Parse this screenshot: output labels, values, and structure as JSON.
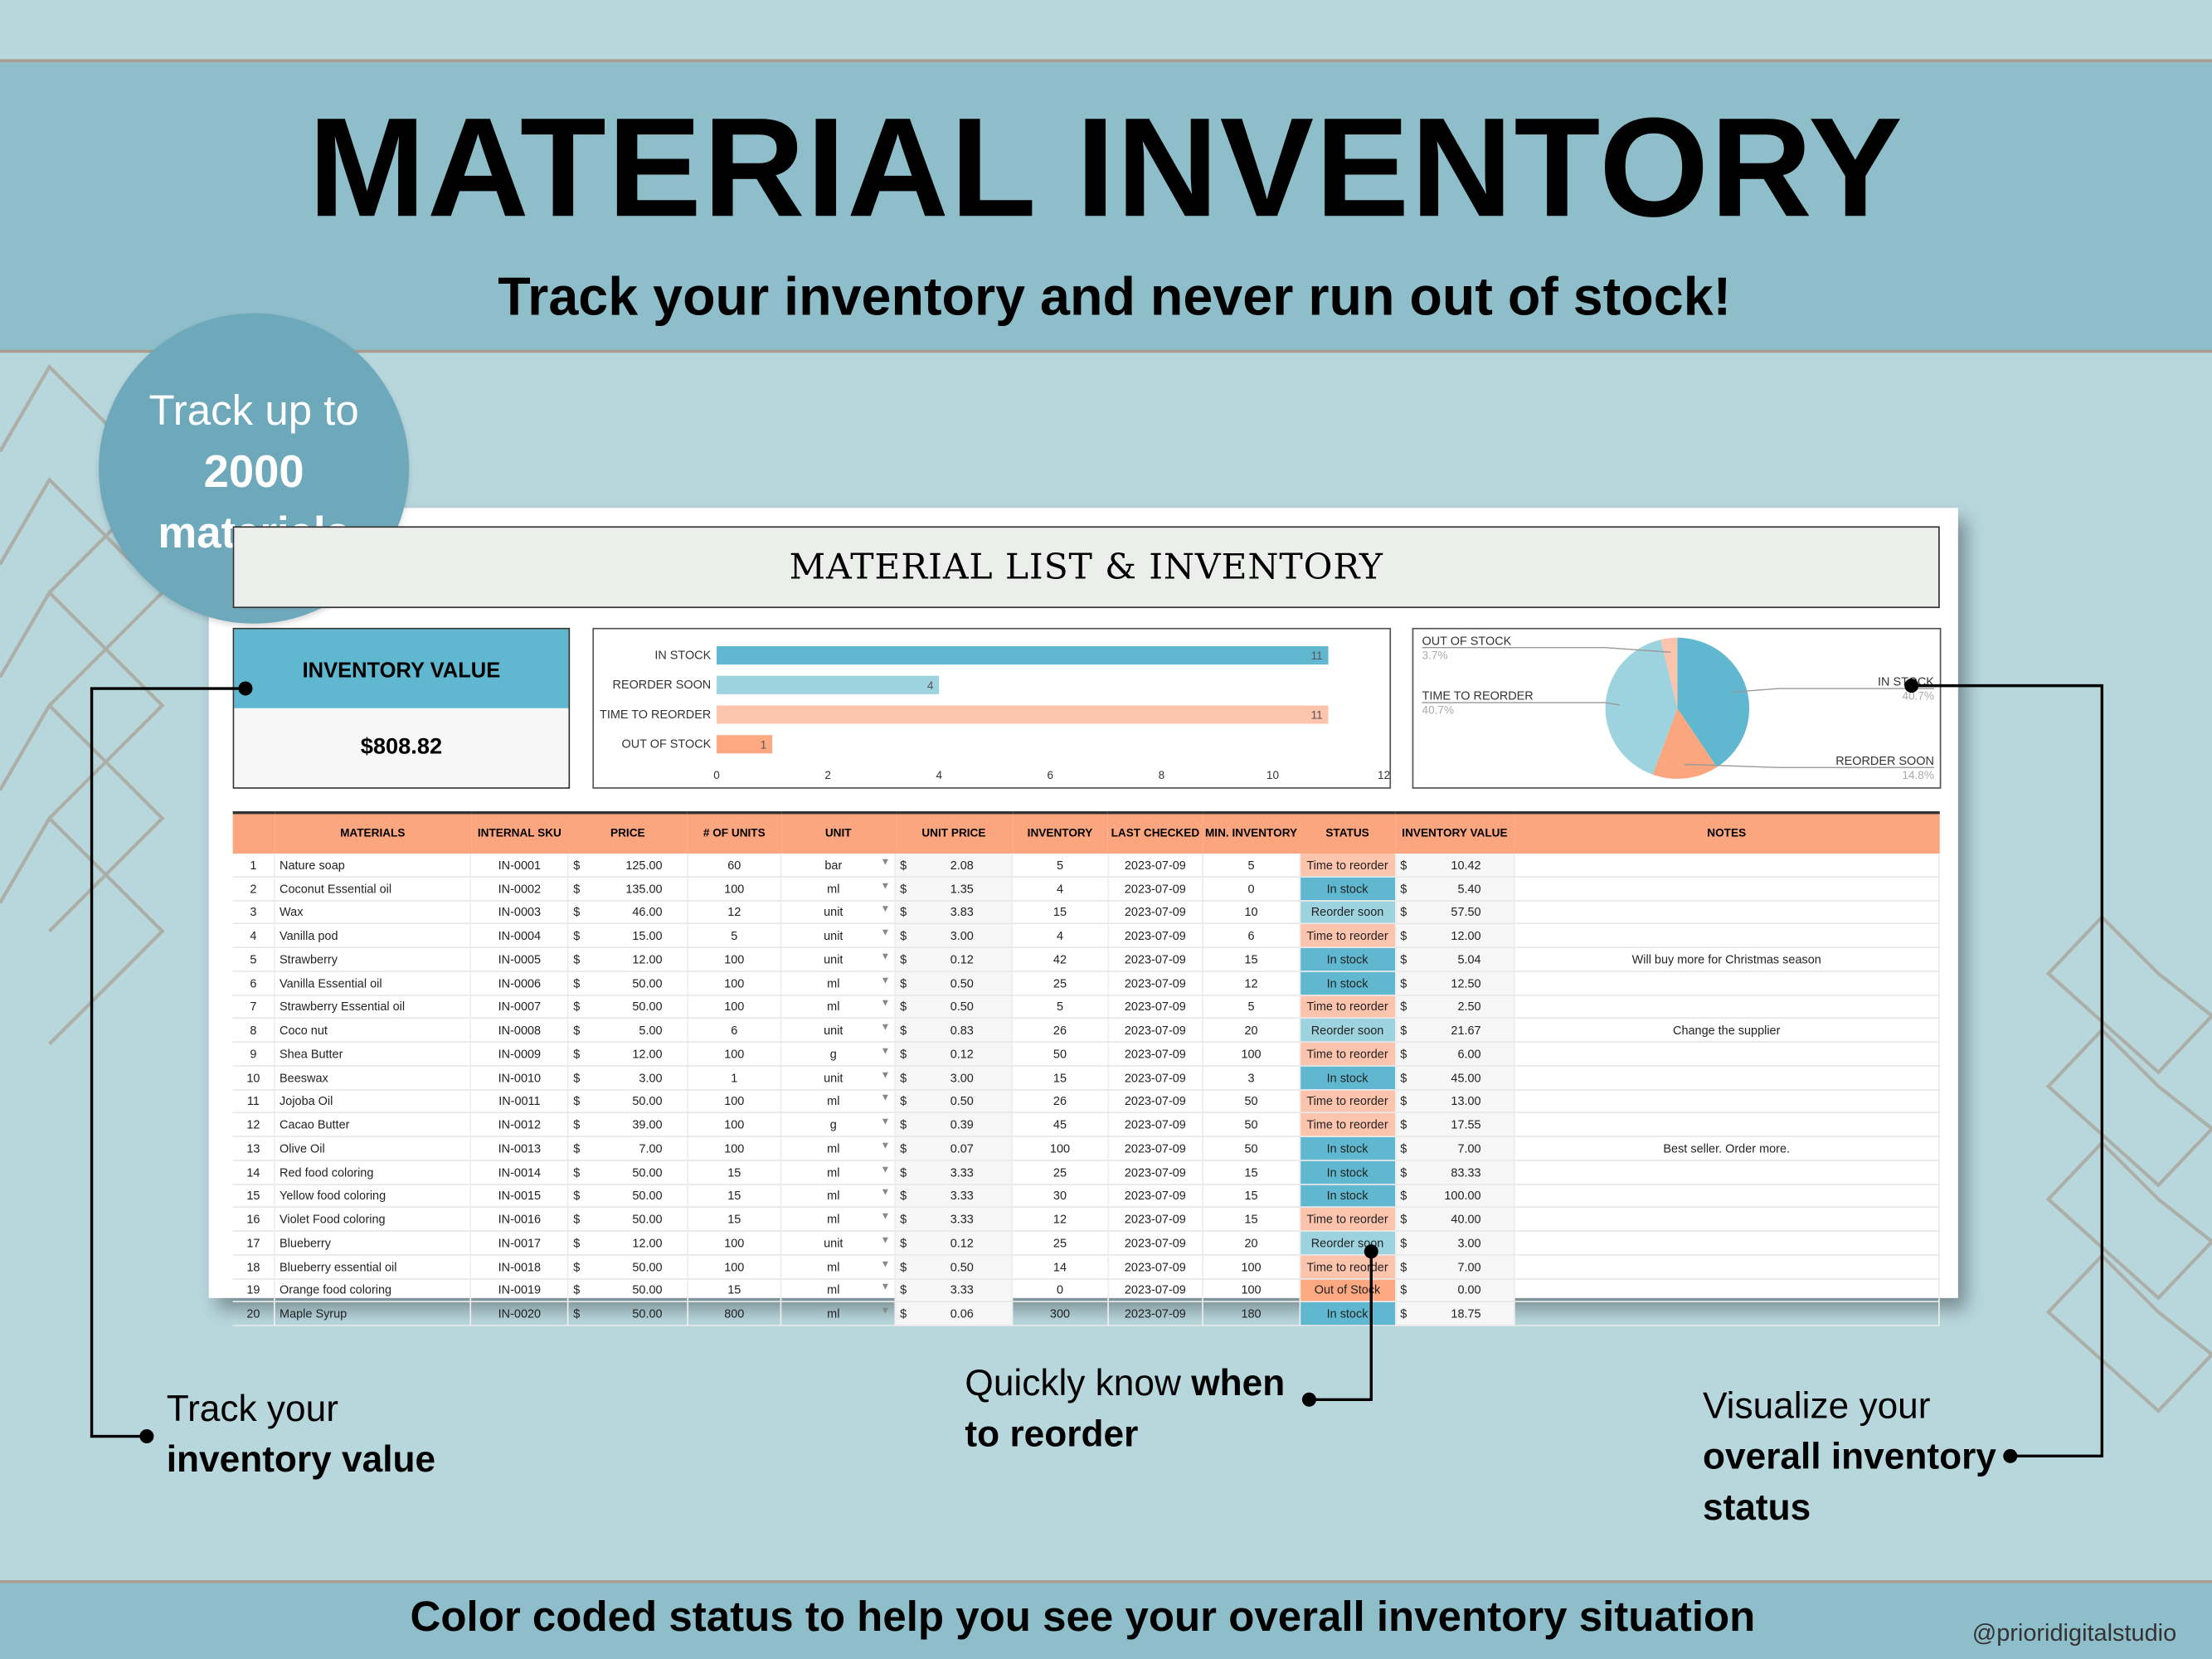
{
  "header": {
    "title": "MATERIAL INVENTORY",
    "subtitle": "Track your inventory and never run out of stock!"
  },
  "badge": {
    "line1": "Track up to",
    "line2": "2000",
    "line3": "materials"
  },
  "sheet": {
    "title": "MATERIAL LIST & INVENTORY",
    "inventory_value_label": "INVENTORY VALUE",
    "inventory_value": "$808.82"
  },
  "colors": {
    "in_stock": "#5fb8cf",
    "reorder_soon": "#9dd3df",
    "time_to_reorder": "#fcc3ad",
    "out_of_stock": "#fca982",
    "header": "#fca680"
  },
  "chart_data": [
    {
      "type": "bar",
      "orientation": "horizontal",
      "categories": [
        "IN STOCK",
        "REORDER SOON",
        "TIME TO REORDER",
        "OUT OF STOCK"
      ],
      "values": [
        11,
        4,
        11,
        1
      ],
      "xlim": [
        0,
        12
      ],
      "xticks": [
        "0",
        "2",
        "4",
        "6",
        "8",
        "10",
        "12"
      ],
      "colors": [
        "#5fb8cf",
        "#9dd3df",
        "#fcc3ad",
        "#fca982"
      ]
    },
    {
      "type": "pie",
      "slices": [
        {
          "label": "IN STOCK",
          "pct": "40.7%",
          "value": 40.7,
          "color": "#5fb8cf"
        },
        {
          "label": "REORDER SOON",
          "pct": "14.8%",
          "value": 14.8,
          "color": "#fca680"
        },
        {
          "label": "TIME TO REORDER",
          "pct": "40.7%",
          "value": 40.7,
          "color": "#9dd3df"
        },
        {
          "label": "OUT OF STOCK",
          "pct": "3.7%",
          "value": 3.7,
          "color": "#fcc3ad"
        }
      ]
    }
  ],
  "table": {
    "columns": [
      "",
      "MATERIALS",
      "INTERNAL SKU",
      "PRICE",
      "# OF UNITS",
      "UNIT",
      "UNIT PRICE",
      "INVENTORY",
      "LAST CHECKED",
      "MIN. INVENTORY",
      "STATUS",
      "INVENTORY VALUE",
      "NOTES"
    ],
    "rows": [
      [
        "1",
        "Nature soap",
        "IN-0001",
        "125.00",
        "60",
        "bar",
        "2.08",
        "5",
        "2023-07-09",
        "5",
        "Time to reorder",
        "10.42",
        ""
      ],
      [
        "2",
        "Coconut Essential oil",
        "IN-0002",
        "135.00",
        "100",
        "ml",
        "1.35",
        "4",
        "2023-07-09",
        "0",
        "In stock",
        "5.40",
        ""
      ],
      [
        "3",
        "Wax",
        "IN-0003",
        "46.00",
        "12",
        "unit",
        "3.83",
        "15",
        "2023-07-09",
        "10",
        "Reorder soon",
        "57.50",
        ""
      ],
      [
        "4",
        "Vanilla pod",
        "IN-0004",
        "15.00",
        "5",
        "unit",
        "3.00",
        "4",
        "2023-07-09",
        "6",
        "Time to reorder",
        "12.00",
        ""
      ],
      [
        "5",
        "Strawberry",
        "IN-0005",
        "12.00",
        "100",
        "unit",
        "0.12",
        "42",
        "2023-07-09",
        "15",
        "In stock",
        "5.04",
        "Will buy more for Christmas season"
      ],
      [
        "6",
        "Vanilla Essential oil",
        "IN-0006",
        "50.00",
        "100",
        "ml",
        "0.50",
        "25",
        "2023-07-09",
        "12",
        "In stock",
        "12.50",
        ""
      ],
      [
        "7",
        "Strawberry Essential oil",
        "IN-0007",
        "50.00",
        "100",
        "ml",
        "0.50",
        "5",
        "2023-07-09",
        "5",
        "Time to reorder",
        "2.50",
        ""
      ],
      [
        "8",
        "Coco nut",
        "IN-0008",
        "5.00",
        "6",
        "unit",
        "0.83",
        "26",
        "2023-07-09",
        "20",
        "Reorder soon",
        "21.67",
        "Change the supplier"
      ],
      [
        "9",
        "Shea Butter",
        "IN-0009",
        "12.00",
        "100",
        "g",
        "0.12",
        "50",
        "2023-07-09",
        "100",
        "Time to reorder",
        "6.00",
        ""
      ],
      [
        "10",
        "Beeswax",
        "IN-0010",
        "3.00",
        "1",
        "unit",
        "3.00",
        "15",
        "2023-07-09",
        "3",
        "In stock",
        "45.00",
        ""
      ],
      [
        "11",
        "Jojoba Oil",
        "IN-0011",
        "50.00",
        "100",
        "ml",
        "0.50",
        "26",
        "2023-07-09",
        "50",
        "Time to reorder",
        "13.00",
        ""
      ],
      [
        "12",
        "Cacao Butter",
        "IN-0012",
        "39.00",
        "100",
        "g",
        "0.39",
        "45",
        "2023-07-09",
        "50",
        "Time to reorder",
        "17.55",
        ""
      ],
      [
        "13",
        "Olive Oil",
        "IN-0013",
        "7.00",
        "100",
        "ml",
        "0.07",
        "100",
        "2023-07-09",
        "50",
        "In stock",
        "7.00",
        "Best seller. Order more."
      ],
      [
        "14",
        "Red food coloring",
        "IN-0014",
        "50.00",
        "15",
        "ml",
        "3.33",
        "25",
        "2023-07-09",
        "15",
        "In stock",
        "83.33",
        ""
      ],
      [
        "15",
        "Yellow food coloring",
        "IN-0015",
        "50.00",
        "15",
        "ml",
        "3.33",
        "30",
        "2023-07-09",
        "15",
        "In stock",
        "100.00",
        ""
      ],
      [
        "16",
        "Violet Food coloring",
        "IN-0016",
        "50.00",
        "15",
        "ml",
        "3.33",
        "12",
        "2023-07-09",
        "15",
        "Time to reorder",
        "40.00",
        ""
      ],
      [
        "17",
        "Blueberry",
        "IN-0017",
        "12.00",
        "100",
        "unit",
        "0.12",
        "25",
        "2023-07-09",
        "20",
        "Reorder soon",
        "3.00",
        ""
      ],
      [
        "18",
        "Blueberry essential oil",
        "IN-0018",
        "50.00",
        "100",
        "ml",
        "0.50",
        "14",
        "2023-07-09",
        "100",
        "Time to reorder",
        "7.00",
        ""
      ],
      [
        "19",
        "Orange food coloring",
        "IN-0019",
        "50.00",
        "15",
        "ml",
        "3.33",
        "0",
        "2023-07-09",
        "100",
        "Out of Stock",
        "0.00",
        ""
      ],
      [
        "20",
        "Maple Syrup",
        "IN-0020",
        "50.00",
        "800",
        "ml",
        "0.06",
        "300",
        "2023-07-09",
        "180",
        "In stock",
        "18.75",
        ""
      ]
    ]
  },
  "currency": "$",
  "callouts": {
    "left1": "Track your",
    "left2": "inventory value",
    "mid1": "Quickly know ",
    "mid1b": "when",
    "mid2": "to reorder",
    "right1": "Visualize your",
    "right2": "overall inventory",
    "right3": "status"
  },
  "footer": {
    "text": "Color coded status to help you see your overall inventory situation",
    "handle": "@prioridigitalstudio"
  }
}
